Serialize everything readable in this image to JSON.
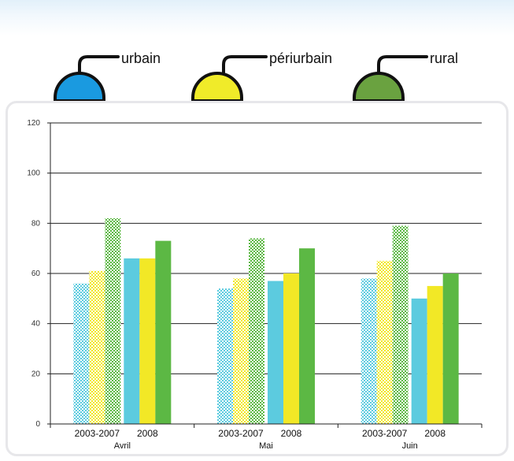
{
  "colors": {
    "urbain": "#5ccbdf",
    "periurbain": "#f2e826",
    "rural": "#5cb844",
    "urbain_dot": "#1a9ae0",
    "periurbain_dot": "#f0eb29",
    "rural_dot": "#6aa240"
  },
  "legend": {
    "items": [
      {
        "key": "urbain",
        "label": "urbain"
      },
      {
        "key": "periurbain",
        "label": "périurbain"
      },
      {
        "key": "rural",
        "label": "rural"
      }
    ]
  },
  "chart_data": {
    "type": "bar",
    "title": "",
    "xlabel": "",
    "ylabel": "",
    "ylim": [
      0,
      120
    ],
    "yticks": [
      0,
      20,
      40,
      60,
      80,
      100,
      120
    ],
    "grid": true,
    "patterns": {
      "2003-2007": "checkered",
      "2008": "solid"
    },
    "groups": [
      {
        "month": "Avril",
        "periods": [
          {
            "period": "2003-2007",
            "values": {
              "urbain": 56,
              "periurbain": 61,
              "rural": 82
            }
          },
          {
            "period": "2008",
            "values": {
              "urbain": 66,
              "periurbain": 66,
              "rural": 73
            }
          }
        ]
      },
      {
        "month": "Mai",
        "periods": [
          {
            "period": "2003-2007",
            "values": {
              "urbain": 54,
              "periurbain": 58,
              "rural": 74
            }
          },
          {
            "period": "2008",
            "values": {
              "urbain": 57,
              "periurbain": 60,
              "rural": 70
            }
          }
        ]
      },
      {
        "month": "Juin",
        "periods": [
          {
            "period": "2003-2007",
            "values": {
              "urbain": 58,
              "periurbain": 65,
              "rural": 79
            }
          },
          {
            "period": "2008",
            "values": {
              "urbain": 50,
              "periurbain": 55,
              "rural": 60
            }
          }
        ]
      }
    ]
  }
}
